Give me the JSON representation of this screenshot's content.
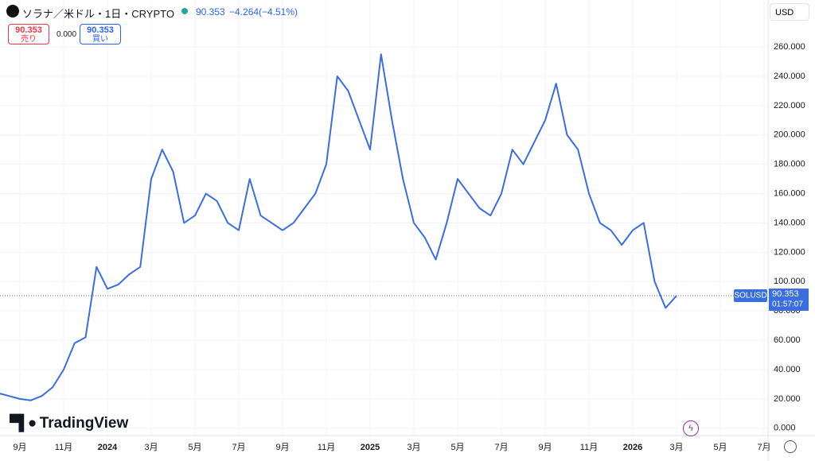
{
  "header": {
    "symbol": "ソラナ／米ドル・1日・CRYPTO",
    "last_price": "90.353",
    "change": "−4.264",
    "change_pct": "(−4.51%)",
    "sell_price": "90.353",
    "sell_label": "売り",
    "spread": "0.000",
    "buy_price": "90.353",
    "buy_label": "買い",
    "currency": "USD",
    "logo": "TradingView"
  },
  "chart_data": {
    "type": "line",
    "color": "#3a6de0",
    "grid": true,
    "categories": [
      null,
      null,
      "9月",
      null,
      null,
      null,
      "11月",
      null,
      null,
      null,
      "2024",
      null,
      null,
      null,
      "3月",
      null,
      null,
      null,
      "5月",
      null,
      null,
      null,
      "7月",
      null,
      null,
      null,
      "9月",
      null,
      null,
      null,
      "11月",
      null,
      null,
      null,
      "2025",
      null,
      null,
      null,
      "3月",
      null,
      null,
      null,
      "5月",
      null,
      null,
      null,
      "7月",
      null,
      null,
      null,
      "9月",
      null,
      null,
      null,
      "11月",
      null,
      null,
      null,
      "2026",
      null,
      null,
      null,
      "3月",
      null,
      null,
      null,
      "5月",
      null,
      null,
      null,
      "7月",
      null
    ],
    "values": [
      24,
      22,
      20,
      19,
      22,
      28,
      40,
      58,
      62,
      110,
      95,
      98,
      105,
      110,
      170,
      190,
      175,
      140,
      145,
      160,
      155,
      140,
      135,
      170,
      145,
      140,
      135,
      140,
      150,
      160,
      180,
      240,
      230,
      210,
      190,
      255,
      210,
      170,
      140,
      130,
      115,
      140,
      170,
      160,
      150,
      145,
      160,
      190,
      180,
      195,
      210,
      235,
      200,
      190,
      160,
      140,
      135,
      125,
      135,
      140,
      100,
      82,
      90.353,
      null,
      null,
      null,
      null,
      null,
      null,
      null,
      null,
      null
    ],
    "ylim": [
      -5,
      292
    ],
    "yticks": [
      {
        "value": 0,
        "label": "0.000"
      },
      {
        "value": 20,
        "label": "20.000"
      },
      {
        "value": 40,
        "label": "40.000"
      },
      {
        "value": 60,
        "label": "60.000"
      },
      {
        "value": 80,
        "label": "80.000"
      },
      {
        "value": 100,
        "label": "100.000"
      },
      {
        "value": 120,
        "label": "120.000"
      },
      {
        "value": 140,
        "label": "140.000"
      },
      {
        "value": 160,
        "label": "160.000"
      },
      {
        "value": 180,
        "label": "180.000"
      },
      {
        "value": 200,
        "label": "200.000"
      },
      {
        "value": 220,
        "label": "220.000"
      },
      {
        "value": 240,
        "label": "240.000"
      },
      {
        "value": 260,
        "label": "260.000"
      }
    ],
    "last": {
      "value": 90.353,
      "label": "90.353",
      "name": "SOLUSD",
      "countdown": "01:57:07"
    }
  }
}
